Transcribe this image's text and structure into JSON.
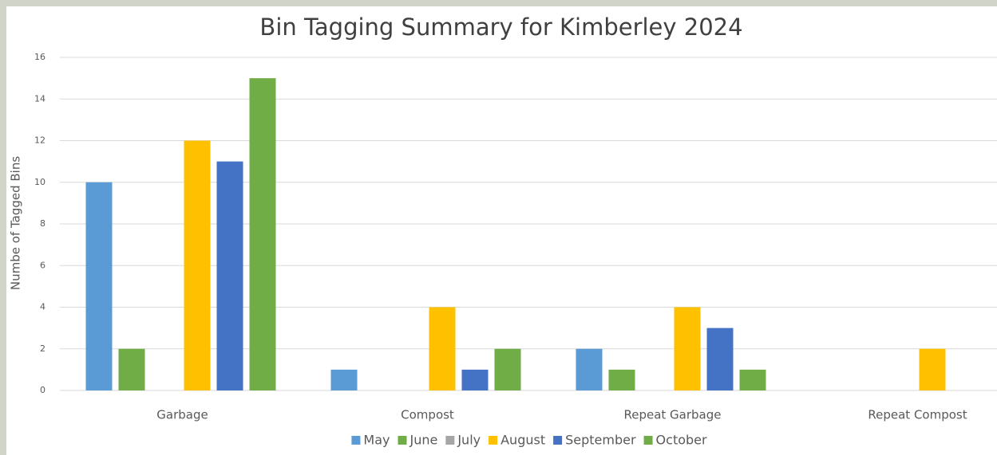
{
  "chart_data": {
    "type": "bar",
    "title": "Bin Tagging Summary for Kimberley 2024",
    "y_label": "Numbe of Tagged Bins",
    "categories": [
      "Garbage",
      "Compost",
      "Repeat Garbage",
      "Repeat Compost"
    ],
    "series": [
      {
        "name": "May",
        "color": "#5b9bd5",
        "values": [
          10,
          1,
          2,
          0
        ]
      },
      {
        "name": "June",
        "color": "#70ad47",
        "values": [
          2,
          0,
          1,
          0
        ]
      },
      {
        "name": "July",
        "color": "#a5a5a5",
        "values": [
          0,
          0,
          0,
          0
        ]
      },
      {
        "name": "August",
        "color": "#ffc000",
        "values": [
          12,
          4,
          4,
          2
        ]
      },
      {
        "name": "September",
        "color": "#4472c4",
        "values": [
          11,
          1,
          3,
          0
        ]
      },
      {
        "name": "October",
        "color": "#70ad47",
        "values": [
          15,
          2,
          1,
          0
        ]
      }
    ],
    "ylim": [
      0,
      16
    ],
    "yticks": [
      0,
      2,
      4,
      6,
      8,
      10,
      12,
      14,
      16
    ],
    "grid": true,
    "legend": "bottom"
  }
}
